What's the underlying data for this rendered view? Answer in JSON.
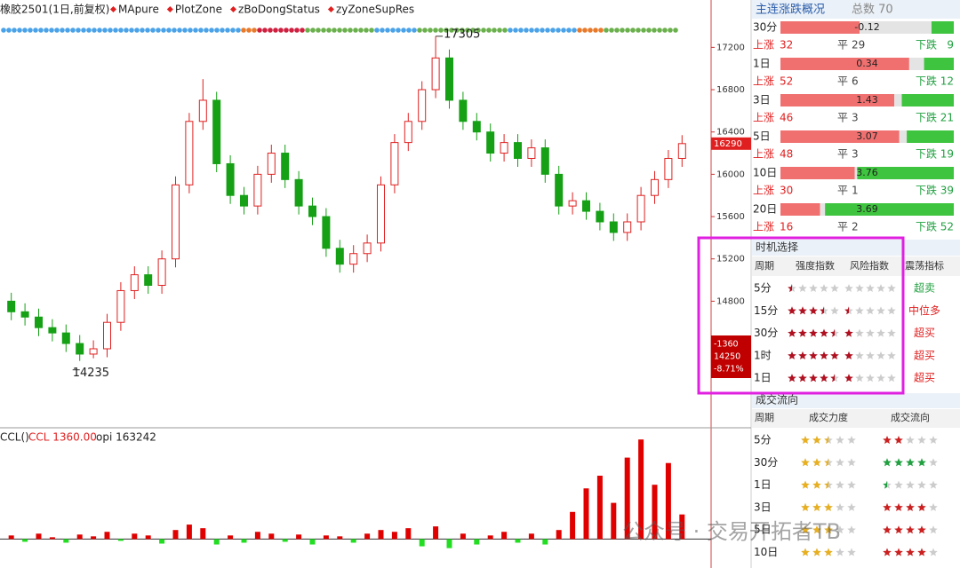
{
  "header": {
    "symbol": "橡胶2501(1日,前复权)",
    "indicators": [
      "MApure",
      "PlotZone",
      "zBoDongStatus",
      "zyZoneSupRes"
    ]
  },
  "chart_data": {
    "type": "candlestick",
    "ylim": [
      13620,
      17480
    ],
    "yticks": [
      14800,
      15200,
      15600,
      16000,
      16400,
      16800,
      17200
    ],
    "candles": [
      [
        14800,
        14880,
        14620,
        14700
      ],
      [
        14700,
        14780,
        14570,
        14650
      ],
      [
        14650,
        14730,
        14470,
        14550
      ],
      [
        14550,
        14630,
        14420,
        14500
      ],
      [
        14500,
        14580,
        14320,
        14400
      ],
      [
        14400,
        14480,
        14235,
        14300
      ],
      [
        14300,
        14430,
        14260,
        14350
      ],
      [
        14350,
        14680,
        14270,
        14600
      ],
      [
        14600,
        14980,
        14520,
        14900
      ],
      [
        14900,
        15130,
        14820,
        15050
      ],
      [
        15050,
        15130,
        14870,
        14950
      ],
      [
        14950,
        15280,
        14870,
        15200
      ],
      [
        15200,
        15980,
        15120,
        15900
      ],
      [
        15900,
        16580,
        15820,
        16500
      ],
      [
        16500,
        16900,
        16420,
        16700
      ],
      [
        16700,
        16780,
        16020,
        16100
      ],
      [
        16100,
        16180,
        15720,
        15800
      ],
      [
        15800,
        15880,
        15620,
        15700
      ],
      [
        15700,
        16080,
        15620,
        16000
      ],
      [
        16000,
        16280,
        15920,
        16200
      ],
      [
        16200,
        16280,
        15870,
        15950
      ],
      [
        15950,
        16030,
        15620,
        15700
      ],
      [
        15700,
        15780,
        15520,
        15600
      ],
      [
        15600,
        15680,
        15220,
        15300
      ],
      [
        15300,
        15380,
        15070,
        15150
      ],
      [
        15150,
        15330,
        15070,
        15250
      ],
      [
        15250,
        15430,
        15170,
        15350
      ],
      [
        15350,
        15980,
        15270,
        15900
      ],
      [
        15900,
        16380,
        15820,
        16300
      ],
      [
        16300,
        16580,
        16220,
        16500
      ],
      [
        16500,
        16880,
        16420,
        16800
      ],
      [
        16800,
        17305,
        16720,
        17100
      ],
      [
        17100,
        17180,
        16620,
        16700
      ],
      [
        16700,
        16780,
        16420,
        16500
      ],
      [
        16500,
        16580,
        16320,
        16400
      ],
      [
        16400,
        16480,
        16120,
        16200
      ],
      [
        16200,
        16380,
        16120,
        16300
      ],
      [
        16300,
        16380,
        16070,
        16150
      ],
      [
        16150,
        16330,
        16070,
        16250
      ],
      [
        16250,
        16330,
        15920,
        16000
      ],
      [
        16000,
        16080,
        15620,
        15700
      ],
      [
        15700,
        15830,
        15620,
        15750
      ],
      [
        15750,
        15830,
        15570,
        15650
      ],
      [
        15650,
        15730,
        15470,
        15550
      ],
      [
        15550,
        15630,
        15370,
        15450
      ],
      [
        15450,
        15630,
        15370,
        15550
      ],
      [
        15550,
        15880,
        15470,
        15800
      ],
      [
        15800,
        16030,
        15720,
        15950
      ],
      [
        15950,
        16230,
        15870,
        16150
      ],
      [
        16150,
        16370,
        16070,
        16290
      ]
    ],
    "high_label": 17305,
    "low_label": 14235,
    "last_price": 16290,
    "info": {
      "change": -1360,
      "ref_price": 14250,
      "change_pct": "-8.71%"
    }
  },
  "lower": {
    "title": "CCL()",
    "ccl_label": "CCL 1360.00",
    "opi_label": "opi 163242",
    "ylim": [
      -1500,
      6000
    ],
    "values": [
      200,
      -150,
      300,
      100,
      -200,
      250,
      150,
      400,
      -100,
      300,
      200,
      -250,
      500,
      800,
      600,
      -300,
      200,
      -200,
      400,
      300,
      -150,
      250,
      -300,
      200,
      150,
      -200,
      300,
      500,
      400,
      600,
      -400,
      700,
      -500,
      300,
      -300,
      200,
      400,
      -200,
      300,
      -300,
      500,
      1500,
      2800,
      3500,
      2000,
      4500,
      5500,
      3000,
      4200,
      1360
    ]
  },
  "overview": {
    "title": "主连涨跌概况",
    "total": "总数 70",
    "labels": {
      "up": "上涨",
      "flat": "平",
      "down": "下跌"
    },
    "rows": [
      {
        "period": "30分",
        "change": -0.12,
        "up": 32,
        "flat": 29,
        "down": 9
      },
      {
        "period": "1日",
        "change": 0.34,
        "up": 52,
        "flat": 6,
        "down": 12
      },
      {
        "period": "3日",
        "change": 1.43,
        "up": 46,
        "flat": 3,
        "down": 21
      },
      {
        "period": "5日",
        "change": 3.07,
        "up": 48,
        "flat": 3,
        "down": 19
      },
      {
        "period": "10日",
        "change": 3.76,
        "up": 30,
        "flat": 1,
        "down": 39
      },
      {
        "period": "20日",
        "change": 3.69,
        "up": 16,
        "flat": 2,
        "down": 52
      }
    ]
  },
  "timing": {
    "title": "时机选择",
    "headers": [
      "周期",
      "强度指数",
      "风险指数",
      "震荡指标"
    ],
    "rows": [
      {
        "period": "5分",
        "strength": 0.5,
        "risk": 0,
        "signal": "超卖"
      },
      {
        "period": "15分",
        "strength": 3.5,
        "risk": 0.5,
        "signal": "中位多"
      },
      {
        "period": "30分",
        "strength": 4.5,
        "risk": 1,
        "signal": "超买"
      },
      {
        "period": "1时",
        "strength": 5,
        "risk": 1,
        "signal": "超买"
      },
      {
        "period": "1日",
        "strength": 4.5,
        "risk": 1,
        "signal": "超买"
      }
    ]
  },
  "flow": {
    "title": "成交流向",
    "headers": [
      "周期",
      "成交力度",
      "成交流向"
    ],
    "rows": [
      {
        "period": "5分",
        "force": 2.5,
        "direction": 2,
        "color": "#cc2020"
      },
      {
        "period": "30分",
        "force": 2.5,
        "direction": 4,
        "color": "#20a040"
      },
      {
        "period": "1日",
        "force": 2.5,
        "direction": 0.5,
        "color": "#20a040"
      },
      {
        "period": "3日",
        "force": 3,
        "direction": 4,
        "color": "#cc2020"
      },
      {
        "period": "5日",
        "force": 3,
        "direction": 4,
        "color": "#cc2020"
      },
      {
        "period": "10日",
        "force": 3,
        "direction": 4,
        "color": "#cc2020"
      }
    ]
  },
  "watermark": "公众号 · 交易开拓者TB"
}
